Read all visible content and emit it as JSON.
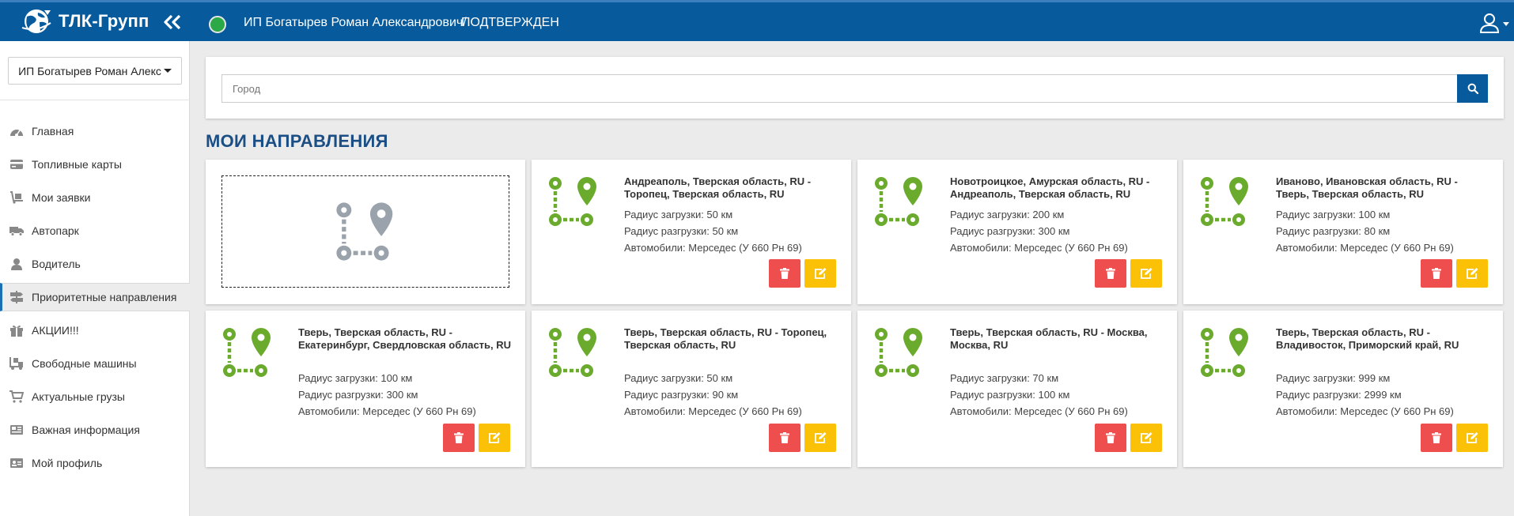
{
  "header": {
    "brand": "ТЛК-Групп",
    "owner_name": "ИП Богатырев Роман Александрович/",
    "owner_status": "ПОДТВЕРЖДЕН",
    "status_color": "#2ba847",
    "bar_color": "#075a9c"
  },
  "sidebar": {
    "company_selector": "ИП Богатырев Роман Алекс",
    "items": [
      {
        "label": "Главная",
        "icon": "dashboard-icon"
      },
      {
        "label": "Топливные карты",
        "icon": "credit-card-icon"
      },
      {
        "label": "Мои заявки",
        "icon": "dolly-icon"
      },
      {
        "label": "Автопарк",
        "icon": "truck-icon"
      },
      {
        "label": "Водитель",
        "icon": "user-icon"
      },
      {
        "label": "Приоритетные направления",
        "icon": "signpost-icon",
        "active": true
      },
      {
        "label": "АКЦИИ!!!",
        "icon": "gift-icon"
      },
      {
        "label": "Свободные машины",
        "icon": "truck-loading-icon"
      },
      {
        "label": "Актуальные грузы",
        "icon": "cart-icon"
      },
      {
        "label": "Важная информация",
        "icon": "newspaper-icon"
      },
      {
        "label": "Мой профиль",
        "icon": "id-card-icon"
      }
    ]
  },
  "search": {
    "placeholder": "Город"
  },
  "page": {
    "title": "МОИ НАПРАВЛЕНИЯ"
  },
  "routes": [
    {
      "title": "Андреаполь, Тверская область, RU - Торопец, Тверская область, RU",
      "load_radius": "Радиус загрузки: 50 км",
      "unload_radius": "Радиус разгрузки: 50 км",
      "vehicles": "Автомобили: Мерседес (У 660 Рн 69)"
    },
    {
      "title": "Новотроицкое, Амурская область, RU - Андреаполь, Тверская область, RU",
      "load_radius": "Радиус загрузки: 200 км",
      "unload_radius": "Радиус разгрузки: 300 км",
      "vehicles": "Автомобили: Мерседес (У 660 Рн 69)"
    },
    {
      "title": "Иваново, Ивановская область, RU - Тверь, Тверская область, RU",
      "load_radius": "Радиус загрузки: 100 км",
      "unload_radius": "Радиус разгрузки: 80 км",
      "vehicles": "Автомобили: Мерседес (У 660 Рн 69)"
    },
    {
      "title": "Тверь, Тверская область, RU - Екатеринбург, Свердловская область, RU",
      "load_radius": "Радиус загрузки: 100 км",
      "unload_radius": "Радиус разгрузки: 300 км",
      "vehicles": "Автомобили: Мерседес (У 660 Рн 69)"
    },
    {
      "title": "Тверь, Тверская область, RU - Торопец, Тверская область, RU",
      "load_radius": "Радиус загрузки: 50 км",
      "unload_radius": "Радиус разгрузки: 90 км",
      "vehicles": "Автомобили: Мерседес (У 660 Рн 69)"
    },
    {
      "title": "Тверь, Тверская область, RU - Москва, Москва, RU",
      "load_radius": "Радиус загрузки: 70 км",
      "unload_radius": "Радиус разгрузки: 100 км",
      "vehicles": "Автомобили: Мерседес (У 660 Рн 69)"
    },
    {
      "title": "Тверь, Тверская область, RU - Владивосток, Приморский край, RU",
      "load_radius": "Радиус загрузки: 999 км",
      "unload_radius": "Радиус разгрузки: 2999 км",
      "vehicles": "Автомобили: Мерседес (У 660 Рн 69)"
    }
  ],
  "colors": {
    "route_icon": "#6aaa2c",
    "add_icon": "#9aa3ab",
    "delete_button": "#ef4e4e",
    "edit_button": "#fbc106",
    "heading": "#1a4e85"
  }
}
